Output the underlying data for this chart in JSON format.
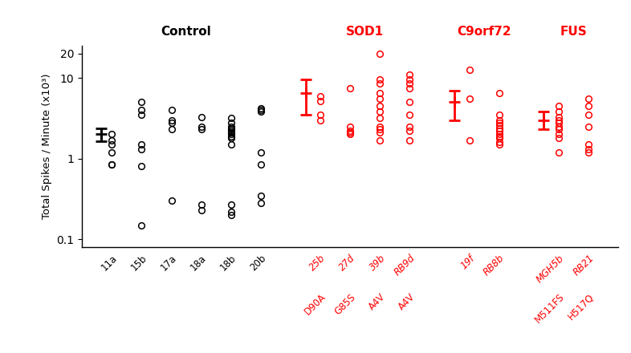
{
  "ylabel": "Total Spikes / Minute (x10³)",
  "ylim_log": [
    0.08,
    25
  ],
  "section_labels": [
    {
      "text": "Control",
      "x": 3.5,
      "color": "black"
    },
    {
      "text": "SOD1",
      "x": 9.5,
      "color": "red"
    },
    {
      "text": "C9orf72",
      "x": 13.5,
      "color": "red"
    },
    {
      "text": "FUS",
      "x": 16.5,
      "color": "red"
    }
  ],
  "control_mean_x": 0.65,
  "control_mean": 2.0,
  "control_sem_lo": 1.65,
  "control_sem_hi": 2.35,
  "sod1_mean_x": 7.5,
  "sod1_mean": 6.5,
  "sod1_sem_lo": 3.5,
  "sod1_sem_hi": 9.5,
  "c9_mean_x": 12.5,
  "c9_mean": 5.0,
  "c9_sem_lo": 3.0,
  "c9_sem_hi": 7.0,
  "fus_mean_x": 15.5,
  "fus_mean": 3.0,
  "fus_sem_lo": 2.3,
  "fus_sem_hi": 3.8,
  "groups": [
    {
      "key": "11a",
      "x": 1,
      "color": "black",
      "italic": false,
      "label_top": "",
      "label_bot": "11a",
      "data": [
        2.0,
        1.7,
        1.5,
        1.2,
        0.85,
        0.85
      ]
    },
    {
      "key": "15b",
      "x": 2,
      "color": "black",
      "italic": false,
      "label_top": "",
      "label_bot": "15b",
      "data": [
        5.0,
        4.0,
        3.5,
        1.5,
        1.3,
        0.8,
        0.15
      ]
    },
    {
      "key": "17a",
      "x": 3,
      "color": "black",
      "italic": false,
      "label_top": "",
      "label_bot": "17a",
      "data": [
        4.0,
        3.0,
        2.8,
        2.3,
        0.3
      ]
    },
    {
      "key": "18a",
      "x": 4,
      "color": "black",
      "italic": false,
      "label_top": "",
      "label_bot": "18a",
      "data": [
        3.3,
        2.5,
        2.3,
        0.27,
        0.23
      ]
    },
    {
      "key": "18b",
      "x": 5,
      "color": "black",
      "italic": false,
      "label_top": "",
      "label_bot": "18b",
      "data": [
        3.2,
        2.8,
        2.5,
        2.4,
        2.3,
        2.2,
        2.1,
        2.0,
        1.9,
        1.8,
        1.5,
        0.27,
        0.22,
        0.2
      ]
    },
    {
      "key": "20b",
      "x": 6,
      "color": "black",
      "italic": false,
      "label_top": "",
      "label_bot": "20b",
      "data": [
        4.2,
        4.0,
        3.8,
        1.2,
        0.85,
        0.35,
        0.28
      ]
    },
    {
      "key": "25b",
      "x": 8,
      "color": "red",
      "italic": true,
      "label_top": "D90A",
      "label_bot": "25b",
      "data": [
        6.0,
        5.2,
        3.5,
        3.0
      ]
    },
    {
      "key": "27d",
      "x": 9,
      "color": "red",
      "italic": true,
      "label_top": "G85S",
      "label_bot": "27d",
      "data": [
        7.5,
        2.5,
        2.2,
        2.1,
        2.0
      ]
    },
    {
      "key": "39b",
      "x": 10,
      "color": "red",
      "italic": true,
      "label_top": "A4V",
      "label_bot": "39b",
      "data": [
        20.0,
        9.5,
        8.5,
        6.5,
        5.5,
        4.5,
        3.8,
        3.2,
        2.5,
        2.3,
        2.1,
        1.7
      ]
    },
    {
      "key": "RB9d",
      "x": 11,
      "color": "red",
      "italic": true,
      "label_top": "A4V",
      "label_bot": "RB9d",
      "data": [
        11.0,
        9.5,
        8.5,
        7.5,
        5.0,
        3.5,
        2.5,
        2.2,
        1.7
      ]
    },
    {
      "key": "19f",
      "x": 13,
      "color": "red",
      "italic": true,
      "label_top": "",
      "label_bot": "19f",
      "data": [
        12.5,
        5.5,
        1.7
      ]
    },
    {
      "key": "RB8b",
      "x": 14,
      "color": "red",
      "italic": true,
      "label_top": "",
      "label_bot": "RB8b",
      "data": [
        6.5,
        3.5,
        3.0,
        2.8,
        2.6,
        2.4,
        2.2,
        2.0,
        1.9,
        1.8,
        1.6,
        1.5
      ]
    },
    {
      "key": "MGH5b",
      "x": 16,
      "color": "red",
      "italic": true,
      "label_top": "M511FS",
      "label_bot": "MGH5b",
      "data": [
        4.5,
        3.8,
        3.3,
        3.0,
        2.8,
        2.5,
        2.3,
        2.0,
        1.8,
        1.2
      ]
    },
    {
      "key": "RB21",
      "x": 17,
      "color": "red",
      "italic": true,
      "label_top": "H517Q",
      "label_bot": "RB21",
      "data": [
        5.5,
        4.5,
        3.5,
        2.5,
        1.5,
        1.3,
        1.2
      ]
    }
  ],
  "xmin": 0,
  "xmax": 18,
  "figsize": [
    7.86,
    4.4
  ],
  "dpi": 100
}
